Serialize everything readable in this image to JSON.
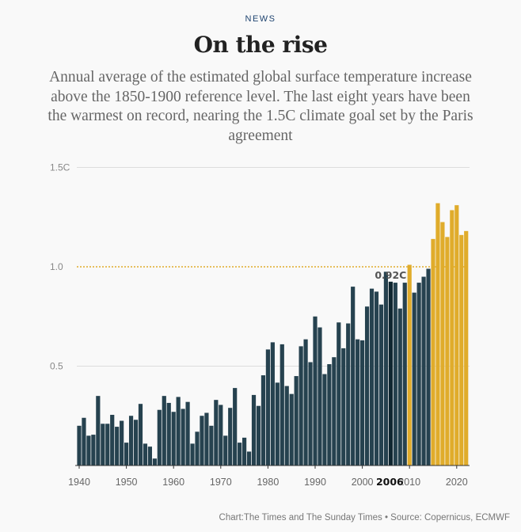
{
  "header": {
    "kicker": "NEWS",
    "title": "On the rise",
    "subtitle": "Annual average of the estimated global surface temperature increase above the 1850-1900 reference level. The last eight years have been the warmest on record, nearing the 1.5C climate goal set by the Paris agreement"
  },
  "footer": "Chart:The Times and The Sunday Times • Source: Copernicus, ECMWF",
  "chart_data": {
    "type": "bar",
    "title": "On the rise",
    "ylim": [
      0,
      1.5
    ],
    "y_ticks": [
      {
        "value": 0.5,
        "label": "0.5"
      },
      {
        "value": 1.0,
        "label": "1.0"
      },
      {
        "value": 1.5,
        "label": "1.5C"
      }
    ],
    "x_ticks": [
      1940,
      1950,
      1960,
      1970,
      1980,
      1990,
      2000,
      2010,
      2020
    ],
    "reference_line": {
      "value": 1.0,
      "style": "dotted",
      "color": "#e0ac2b"
    },
    "highlight": {
      "year": 2006,
      "label": "2006",
      "annotation": "0.92C",
      "color": "#0f2630"
    },
    "colors": {
      "default": "#26424f",
      "above_2006": "#e0ac2b"
    },
    "years": [
      1940,
      1941,
      1942,
      1943,
      1944,
      1945,
      1946,
      1947,
      1948,
      1949,
      1950,
      1951,
      1952,
      1953,
      1954,
      1955,
      1956,
      1957,
      1958,
      1959,
      1960,
      1961,
      1962,
      1963,
      1964,
      1965,
      1966,
      1967,
      1968,
      1969,
      1970,
      1971,
      1972,
      1973,
      1974,
      1975,
      1976,
      1977,
      1978,
      1979,
      1980,
      1981,
      1982,
      1983,
      1984,
      1985,
      1986,
      1987,
      1988,
      1989,
      1990,
      1991,
      1992,
      1993,
      1994,
      1995,
      1996,
      1997,
      1998,
      1999,
      2000,
      2001,
      2002,
      2003,
      2004,
      2005,
      2006,
      2007,
      2008,
      2009,
      2010,
      2011,
      2012,
      2013,
      2014,
      2015,
      2016,
      2017,
      2018,
      2019,
      2020,
      2021,
      2022
    ],
    "values": [
      0.2,
      0.24,
      0.15,
      0.155,
      0.35,
      0.21,
      0.21,
      0.255,
      0.195,
      0.225,
      0.115,
      0.25,
      0.23,
      0.31,
      0.11,
      0.095,
      0.035,
      0.28,
      0.35,
      0.315,
      0.27,
      0.345,
      0.285,
      0.32,
      0.11,
      0.17,
      0.25,
      0.265,
      0.2,
      0.33,
      0.305,
      0.15,
      0.29,
      0.39,
      0.115,
      0.14,
      0.07,
      0.355,
      0.3,
      0.454,
      0.584,
      0.62,
      0.417,
      0.61,
      0.4,
      0.36,
      0.45,
      0.6,
      0.635,
      0.52,
      0.75,
      0.695,
      0.46,
      0.51,
      0.545,
      0.72,
      0.59,
      0.715,
      0.9,
      0.635,
      0.63,
      0.8,
      0.89,
      0.875,
      0.81,
      0.975,
      0.925,
      0.92,
      0.79,
      0.92,
      1.01,
      0.87,
      0.92,
      0.95,
      0.99,
      1.14,
      1.32,
      1.225,
      1.15,
      1.285,
      1.31,
      1.16,
      1.18
    ],
    "highlighted_years": [
      2010,
      2015,
      2016,
      2017,
      2018,
      2019,
      2020,
      2021,
      2022
    ]
  }
}
